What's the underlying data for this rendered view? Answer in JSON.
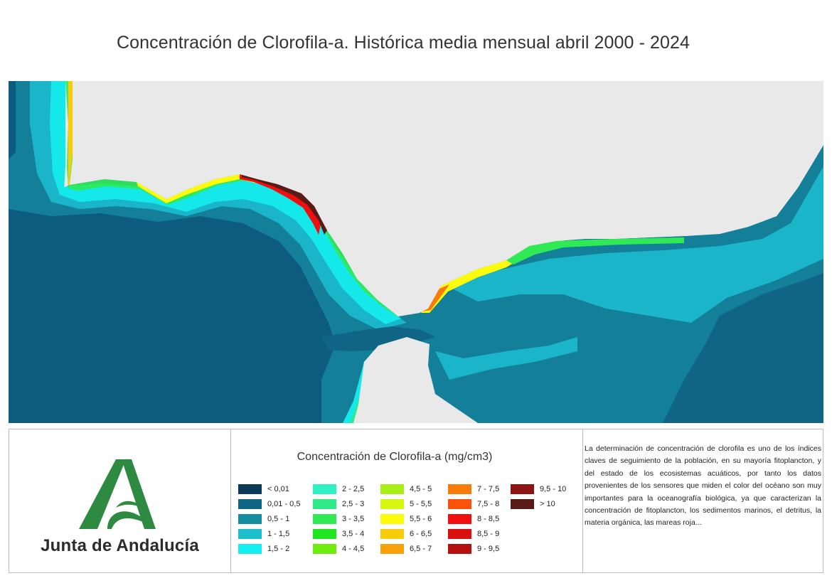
{
  "title": "Concentración de Clorofila-a. Histórica media mensual abril 2000 - 2024",
  "colors": {
    "land": "#e9e9e9",
    "deep_ocean": "#0d5c7e",
    "mid_ocean": "#137f99",
    "shelf": "#1bb5c9",
    "coast_cyan": "#14e8e8",
    "logo_green": "#2e8a40"
  },
  "logo": {
    "text": "Junta de Andalucía",
    "icon": "junta-andalucia-emblem-icon"
  },
  "legend": {
    "title": "Concentración de Clorofila-a (mg/cm3)",
    "items": [
      {
        "label": "< 0,01",
        "color": "#0b3a58"
      },
      {
        "label": "0,01 - 0,5",
        "color": "#0f6583"
      },
      {
        "label": "0,5 - 1",
        "color": "#168c9f"
      },
      {
        "label": "1 - 1,5",
        "color": "#1cbfcc"
      },
      {
        "label": "1,5 - 2",
        "color": "#14f0f0"
      },
      {
        "label": "2 - 2,5",
        "color": "#2ff2c4"
      },
      {
        "label": "2,5 - 3",
        "color": "#2fea86"
      },
      {
        "label": "3 - 3,5",
        "color": "#2fea55"
      },
      {
        "label": "3,5 - 4",
        "color": "#1ee51e"
      },
      {
        "label": "4 - 4,5",
        "color": "#6fec10"
      },
      {
        "label": "4,5 - 5",
        "color": "#a8ef15"
      },
      {
        "label": "5 - 5,5",
        "color": "#d6f70f"
      },
      {
        "label": "5,5 - 6",
        "color": "#fbfb0b"
      },
      {
        "label": "6 - 6,5",
        "color": "#f8cb0b"
      },
      {
        "label": "6,5 - 7",
        "color": "#f8a10b"
      },
      {
        "label": "7 - 7,5",
        "color": "#f97c0b"
      },
      {
        "label": "7,5 - 8",
        "color": "#f9520b"
      },
      {
        "label": "8 - 8,5",
        "color": "#ef0f0f"
      },
      {
        "label": "8,5 - 9",
        "color": "#d8100f"
      },
      {
        "label": "9 - 9,5",
        "color": "#b5110f"
      },
      {
        "label": "9,5 - 10",
        "color": "#8c1414"
      },
      {
        "label": "> 10",
        "color": "#5a1a18"
      }
    ]
  },
  "description": "La determinación de concentración de clorofila es uno de los índices claves de seguimiento de la población, en su mayoría fitoplancton, y del estado de los ecosistemas acuáticos, por tanto los datos provenientes de los sensores que miden el color del océano son muy importantes para la oceanografía biológica, ya que caracterizan la concentración de fitoplancton, los sedimentos marinos, el detritus, la materia orgánica, las mareas roja..."
}
